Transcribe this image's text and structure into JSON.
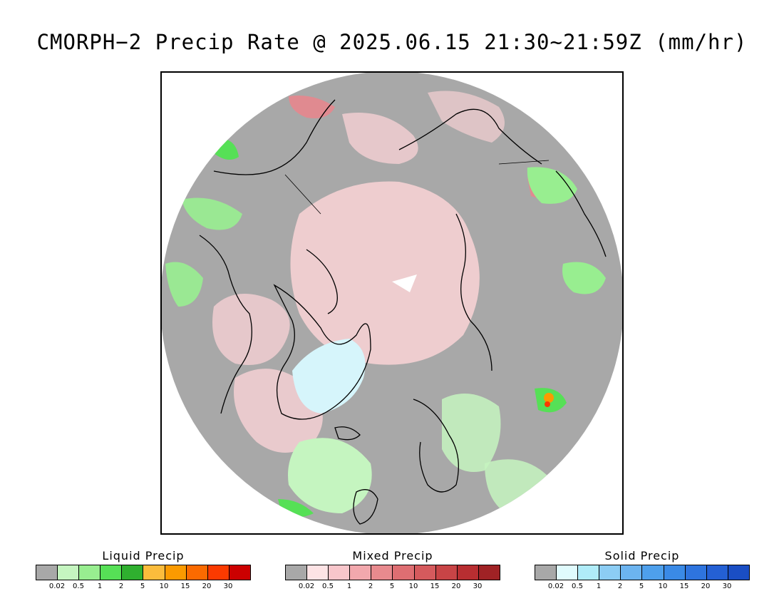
{
  "title": "CMORPH−2 Precip Rate @ 2025.06.15 21:30~21:59Z (mm/hr)",
  "map": {
    "colors": {
      "no_precip": "#a8a8a8",
      "outside": "#ffffff",
      "coast": "#000000",
      "ice_sheet": "#d6f5fb"
    }
  },
  "legends": [
    {
      "title": "Liquid Precip",
      "colors": [
        "#a8a8a8",
        "#c5f5c0",
        "#98ee90",
        "#56e056",
        "#2fb02f",
        "#fbbc3c",
        "#fb9a00",
        "#fb6a00",
        "#fb3a00",
        "#cc0000"
      ],
      "labels": [
        "0.02",
        "0.5",
        "1",
        "2",
        "5",
        "10",
        "15",
        "20",
        "30"
      ]
    },
    {
      "title": "Mixed Precip",
      "colors": [
        "#a8a8a8",
        "#fde3e5",
        "#f8c6cb",
        "#f2a8ad",
        "#e88a8e",
        "#de6e72",
        "#d55a5d",
        "#c84446",
        "#b82e31",
        "#a02225"
      ],
      "labels": [
        "0.02",
        "0.5",
        "1",
        "2",
        "5",
        "10",
        "15",
        "20",
        "30"
      ]
    },
    {
      "title": "Solid Precip",
      "colors": [
        "#a8a8a8",
        "#e0fbfd",
        "#b0ecf9",
        "#8ccdf4",
        "#6cb4f0",
        "#4ea0ec",
        "#3a8ae6",
        "#2e74de",
        "#2460d4",
        "#1a4ec4"
      ],
      "labels": [
        "0.02",
        "0.5",
        "1",
        "2",
        "5",
        "10",
        "15",
        "20",
        "30"
      ]
    }
  ]
}
